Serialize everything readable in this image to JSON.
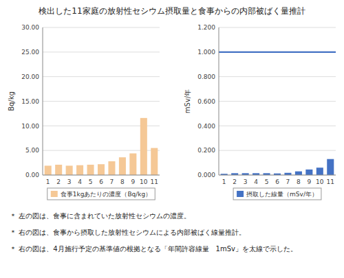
{
  "chart_data": [
    {
      "type": "bar",
      "title": "検出した11家庭の放射性セシウム摂取量と食事からの内部被ばく量推計",
      "ylabel": "Bq/kg",
      "categories": [
        "1",
        "2",
        "3",
        "4",
        "5",
        "6",
        "7",
        "8",
        "9",
        "10",
        "11"
      ],
      "series": [
        {
          "name": "食事1kgあたりの濃度（Bq/kg）",
          "color": "#F5C896",
          "values": [
            1.9,
            2.1,
            1.9,
            2.0,
            2.1,
            2.2,
            2.8,
            3.6,
            4.4,
            11.6,
            5.5
          ]
        }
      ],
      "ylim": [
        0,
        30.0
      ],
      "yticks": [
        {
          "value": 0,
          "label": "0.00"
        },
        {
          "value": 5,
          "label": "5.00"
        },
        {
          "value": 10,
          "label": "10.00"
        },
        {
          "value": 15,
          "label": "15.00"
        },
        {
          "value": 20,
          "label": "20.00"
        },
        {
          "value": 25,
          "label": "25.00"
        },
        {
          "value": 30,
          "label": "30.00"
        }
      ],
      "grid": true,
      "legend": "bottom",
      "annotations": [
        "＊  左の図は、食事に含まれていた放射性セシウムの濃度。"
      ]
    },
    {
      "type": "bar",
      "ylabel": "mSv/年",
      "categories": [
        "1",
        "2",
        "3",
        "4",
        "5",
        "6",
        "7",
        "8",
        "9",
        "10",
        "11"
      ],
      "series": [
        {
          "name": "摂取した線量（mSv/年）",
          "color": "#4472C4",
          "values": [
            0.01,
            0.015,
            0.015,
            0.015,
            0.015,
            0.013,
            0.018,
            0.03,
            0.045,
            0.06,
            0.13
          ]
        }
      ],
      "hline": 1.0,
      "ylim": [
        0,
        1.2
      ],
      "yticks": [
        {
          "value": 0,
          "label": "0.000"
        },
        {
          "value": 0.2,
          "label": "0.200"
        },
        {
          "value": 0.4,
          "label": "0.400"
        },
        {
          "value": 0.6,
          "label": "0.600"
        },
        {
          "value": 0.8,
          "label": "0.800"
        },
        {
          "value": 1.0,
          "label": "1.000"
        },
        {
          "value": 1.2,
          "label": "1.200"
        }
      ],
      "grid": true,
      "legend": "bottom",
      "annotations": [
        "＊  右の図は、食事から摂取した放射性セシウムによる内部被ばく線量推計。",
        "＊  右の図は、4月施行予定の基準値の根拠となる「年間許容線量　1mSv」を太線で示した。"
      ]
    }
  ]
}
